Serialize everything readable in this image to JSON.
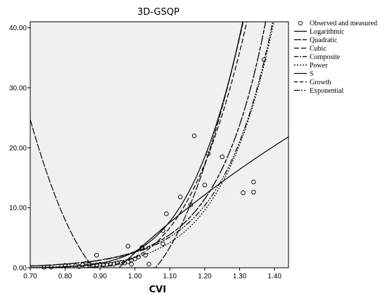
{
  "chart_data": {
    "type": "scatter",
    "title": "3D-GSQP",
    "xlabel": "CVI",
    "ylabel": "",
    "xlim": [
      0.7,
      1.44
    ],
    "ylim": [
      0,
      41
    ],
    "xticks": [
      "0.70",
      "0.80",
      "0.90",
      "1.00",
      "1.10",
      "1.20",
      "1.30",
      "1.40"
    ],
    "yticks": [
      "0.00",
      "10.00",
      "20.00",
      "30.00",
      "40.00"
    ],
    "grid": false,
    "legend_position": "right",
    "scatter": {
      "name": "Observed and measured",
      "x": [
        0.74,
        0.76,
        0.79,
        0.8,
        0.81,
        0.83,
        0.84,
        0.85,
        0.86,
        0.86,
        0.87,
        0.88,
        0.89,
        0.89,
        0.9,
        0.91,
        0.92,
        0.93,
        0.94,
        0.95,
        0.96,
        0.97,
        0.98,
        0.98,
        0.99,
        0.99,
        1.0,
        1.01,
        1.02,
        1.02,
        1.03,
        1.04,
        1.08,
        1.08,
        1.09,
        1.13,
        1.16,
        1.17,
        1.2,
        1.21,
        1.25,
        1.31,
        1.34,
        1.34,
        1.37
      ],
      "y": [
        0.1,
        0.1,
        0.3,
        0.4,
        0.3,
        0.3,
        0.2,
        0.5,
        0.3,
        0.7,
        0.6,
        0.4,
        0.5,
        2.1,
        0.6,
        0.5,
        0.5,
        0.6,
        0.6,
        0.8,
        0.9,
        0.8,
        1.0,
        3.6,
        1.3,
        0.6,
        1.5,
        1.8,
        3.4,
        3.2,
        2.1,
        0.6,
        6.2,
        4.0,
        9.0,
        11.8,
        10.5,
        22.0,
        13.8,
        19.0,
        18.5,
        12.5,
        14.3,
        12.6,
        34.7
      ]
    },
    "series": [
      {
        "name": "Logarithmic",
        "dash": "",
        "color": "#000000"
      },
      {
        "name": "Quadratic",
        "dash": "10 2",
        "color": "#000000"
      },
      {
        "name": "Cubic",
        "dash": "7 3",
        "color": "#000000"
      },
      {
        "name": "Composite",
        "dash": "6 2 2 2",
        "color": "#000000"
      },
      {
        "name": "Power",
        "dash": "2 2",
        "color": "#000000"
      },
      {
        "name": "S",
        "dash": "",
        "color": "#000000"
      },
      {
        "name": "Growth",
        "dash": "5 3",
        "color": "#000000"
      },
      {
        "name": "Exponential",
        "dash": "8 2 2 2 2 2",
        "color": "#000000"
      }
    ],
    "plot_background": "#f0f0f0"
  }
}
